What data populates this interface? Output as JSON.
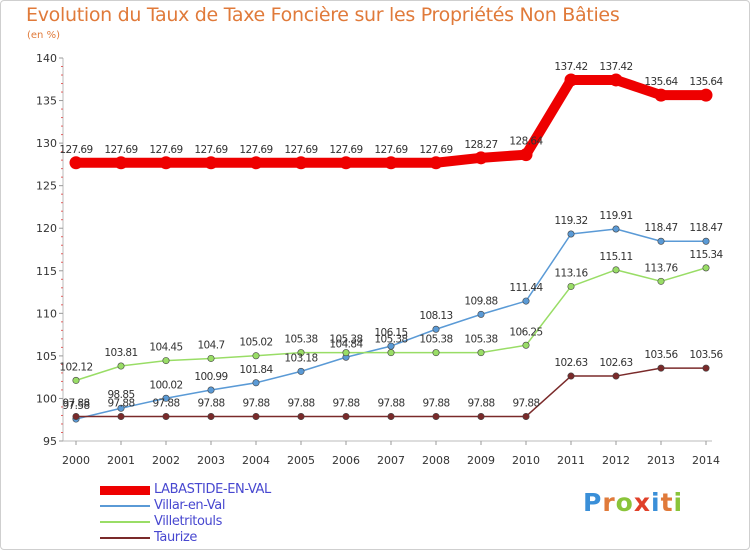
{
  "title": "Evolution du Taux de Taxe Foncière sur les Propriétés Non Bâties",
  "unit": "(en %)",
  "logo": {
    "text": [
      "P",
      "r",
      "o",
      "x",
      "i",
      "t",
      "i"
    ],
    "colors": [
      "#3a8fd8",
      "#e07a3a",
      "#8ac43a",
      "#e0402a",
      "#3a8fd8",
      "#e07a3a",
      "#8ac43a"
    ]
  },
  "chart_data": {
    "type": "line",
    "title": "Evolution du Taux de Taxe Foncière sur les Propriétés Non Bâties",
    "xlabel": "",
    "ylabel": "(en %)",
    "ylim": [
      95,
      140
    ],
    "yticks": [
      "95",
      "100",
      "105",
      "110",
      "115",
      "120",
      "125",
      "130",
      "135",
      "140"
    ],
    "categories": [
      "2000",
      "2001",
      "2002",
      "2003",
      "2004",
      "2005",
      "2006",
      "2007",
      "2008",
      "2009",
      "2010",
      "2011",
      "2012",
      "2013",
      "2014"
    ],
    "series": [
      {
        "name": "LABASTIDE-EN-VAL",
        "color": "#ee0000",
        "width": 10,
        "values": [
          127.69,
          127.69,
          127.69,
          127.69,
          127.69,
          127.69,
          127.69,
          127.69,
          127.69,
          128.27,
          128.64,
          137.42,
          137.42,
          135.64,
          135.64
        ],
        "labels": [
          "127.69",
          "127.69",
          "127.69",
          "127.69",
          "127.69",
          "127.69",
          "127.69",
          "127.69",
          "127.69",
          "128.27",
          "128.64",
          "137.42",
          "137.42",
          "135.64",
          "135.64"
        ]
      },
      {
        "name": "Villar-en-Val",
        "color": "#5a9ad6",
        "width": 1.5,
        "values": [
          97.58,
          98.85,
          100.02,
          100.99,
          101.84,
          103.18,
          104.84,
          106.15,
          108.13,
          109.88,
          111.44,
          119.32,
          119.91,
          118.47,
          118.47
        ],
        "labels": [
          "97.58",
          "98.85",
          "100.02",
          "100.99",
          "101.84",
          "103.18",
          "104.84",
          "106.15",
          "108.13",
          "109.88",
          "111.44",
          "119.32",
          "119.91",
          "118.47",
          "118.47"
        ]
      },
      {
        "name": "Villetritouls",
        "color": "#99dd66",
        "width": 1.5,
        "values": [
          102.12,
          103.81,
          104.45,
          104.7,
          105.02,
          105.38,
          105.38,
          105.38,
          105.38,
          105.38,
          106.25,
          113.16,
          115.11,
          113.76,
          115.34
        ],
        "labels": [
          "102.12",
          "103.81",
          "104.45",
          "104.7",
          "105.02",
          "105.38",
          "105.38",
          "105.38",
          "105.38",
          "105.38",
          "106.25",
          "113.16",
          "115.11",
          "113.76",
          "115.34"
        ]
      },
      {
        "name": "Taurize",
        "color": "#7a2a2a",
        "width": 1.5,
        "values": [
          97.88,
          97.88,
          97.88,
          97.88,
          97.88,
          97.88,
          97.88,
          97.88,
          97.88,
          97.88,
          97.88,
          102.63,
          102.63,
          103.56,
          103.56
        ],
        "labels": [
          "97.88",
          "97.88",
          "97.88",
          "97.88",
          "97.88",
          "97.88",
          "97.88",
          "97.88",
          "97.88",
          "97.88",
          "97.88",
          "102.63",
          "102.63",
          "103.56",
          "103.56"
        ]
      }
    ],
    "legend_position": "bottom-left",
    "grid": false
  }
}
